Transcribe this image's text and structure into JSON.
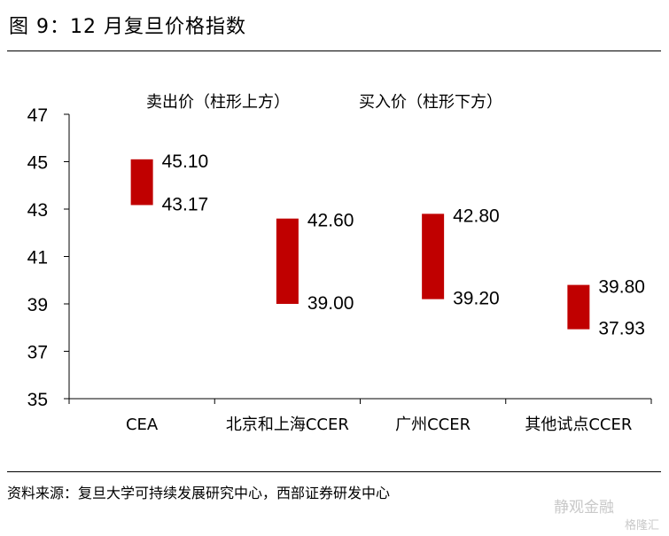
{
  "figure_title": "图 9：12 月复旦价格指数",
  "source": "资料来源：复旦大学可持续发展研究中心，西部证券研发中心",
  "watermark": "静观金融",
  "watermark2": "格隆汇",
  "chart_data": {
    "type": "bar",
    "subtype": "floating-range",
    "title": "",
    "legend_texts": [
      "卖出价（柱形上方）",
      "买入价（柱形下方）"
    ],
    "categories": [
      "CEA",
      "北京和上海CCER",
      "广州CCER",
      "其他试点CCER"
    ],
    "top_values": [
      45.1,
      42.6,
      42.8,
      39.8
    ],
    "bottom_values": [
      43.17,
      39.0,
      39.2,
      37.93
    ],
    "top_labels": [
      "45.10",
      "42.60",
      "42.80",
      "39.80"
    ],
    "bottom_labels": [
      "43.17",
      "39.00",
      "39.20",
      "37.93"
    ],
    "ylim": [
      35,
      47
    ],
    "yticks": [
      35,
      37,
      39,
      41,
      43,
      45,
      47
    ],
    "grid": false,
    "bar_color": "#c00000"
  }
}
